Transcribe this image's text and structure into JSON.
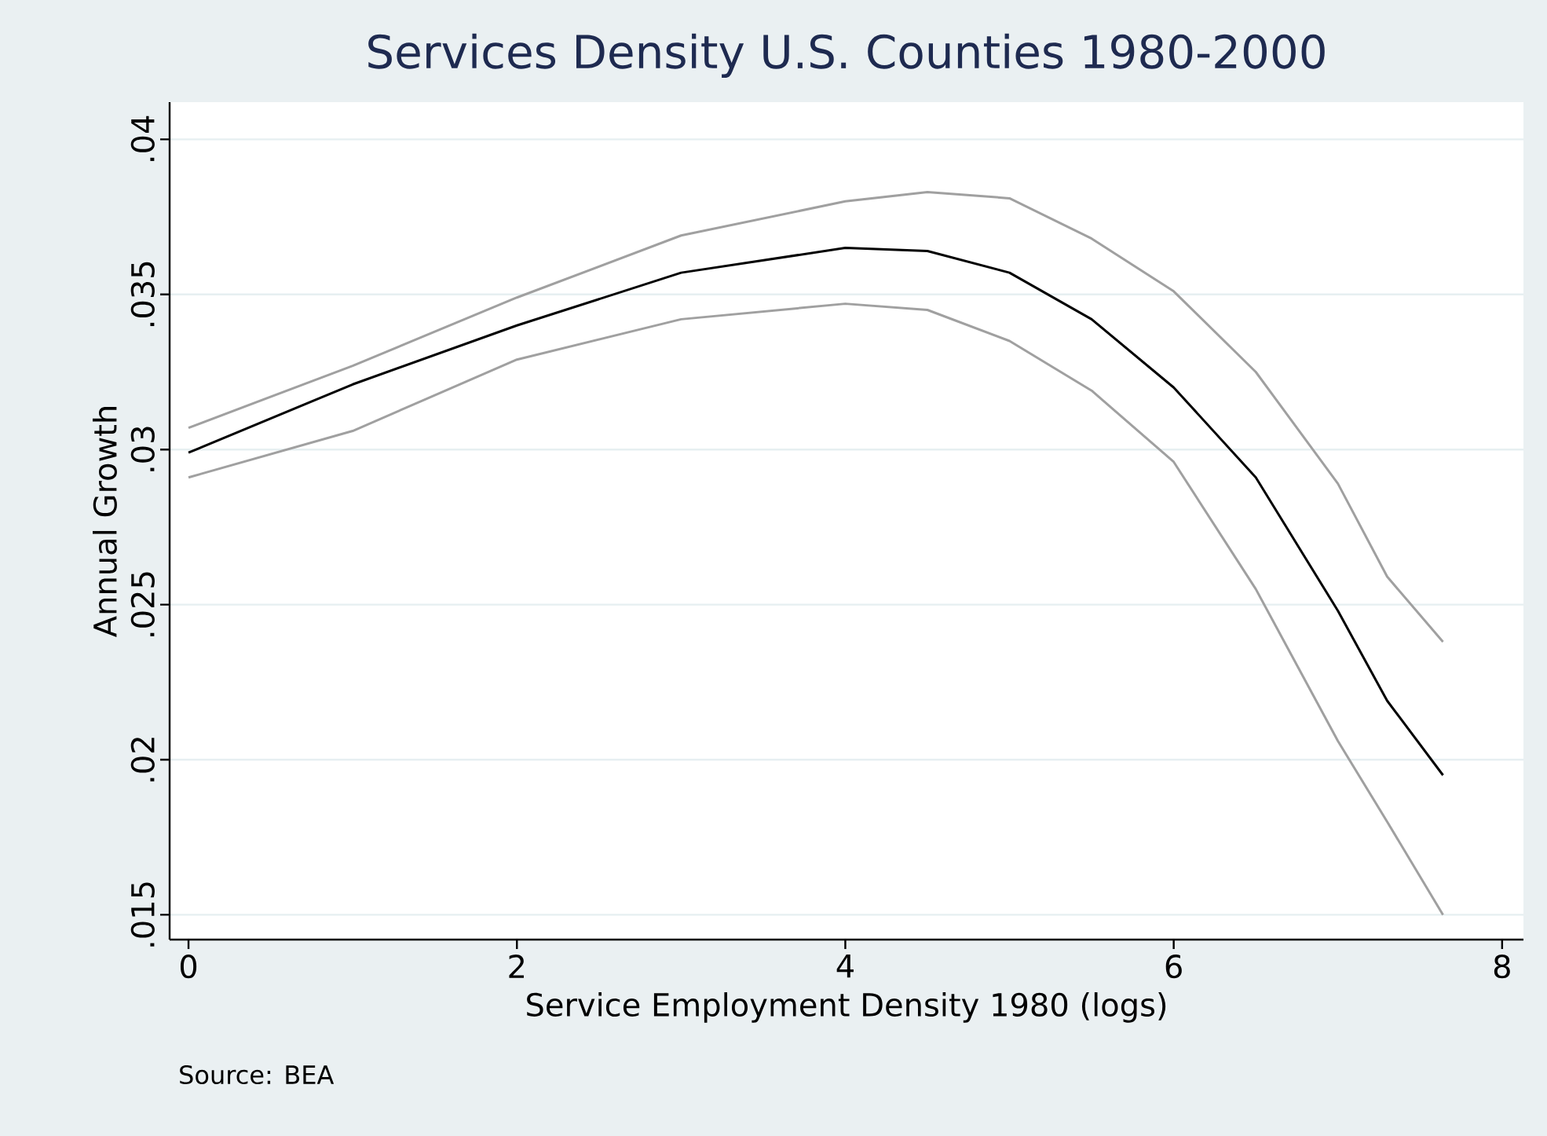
{
  "chart_data": {
    "type": "line",
    "title": "Services Density U.S. Counties 1980-2000",
    "xlabel": "Service Employment Density 1980 (logs)",
    "ylabel": "Annual Growth",
    "annotations": [
      "Source: BEA"
    ],
    "x": [
      0,
      1,
      2,
      3,
      4,
      4.5,
      5,
      5.5,
      6,
      6.5,
      7,
      7.3,
      7.64
    ],
    "series": [
      {
        "color": "#a0a0a0",
        "values": [
          0.0307,
          0.0327,
          0.0349,
          0.0369,
          0.038,
          0.0383,
          0.0381,
          0.0368,
          0.0351,
          0.0325,
          0.0289,
          0.0259,
          0.0238
        ]
      },
      {
        "color": "#000000",
        "values": [
          0.0299,
          0.0321,
          0.034,
          0.0357,
          0.0365,
          0.0364,
          0.0357,
          0.0342,
          0.032,
          0.0291,
          0.0248,
          0.0219,
          0.0195
        ]
      },
      {
        "color": "#a0a0a0",
        "values": [
          0.0291,
          0.0306,
          0.0329,
          0.0342,
          0.0347,
          0.0345,
          0.0335,
          0.0319,
          0.0296,
          0.0255,
          0.0206,
          0.018,
          0.015
        ]
      }
    ],
    "xlim": [
      -0.115,
      8.13
    ],
    "ylim": [
      0.0142,
      0.0412
    ],
    "xticks": [
      0,
      2,
      4,
      6,
      8
    ],
    "yticks": [
      {
        "value": 0.015,
        "label": ".015"
      },
      {
        "value": 0.02,
        "label": ".02"
      },
      {
        "value": 0.025,
        "label": ".025"
      },
      {
        "value": 0.03,
        "label": ".03"
      },
      {
        "value": 0.035,
        "label": ".035"
      },
      {
        "value": 0.04,
        "label": ".04"
      }
    ],
    "grid": "y"
  }
}
